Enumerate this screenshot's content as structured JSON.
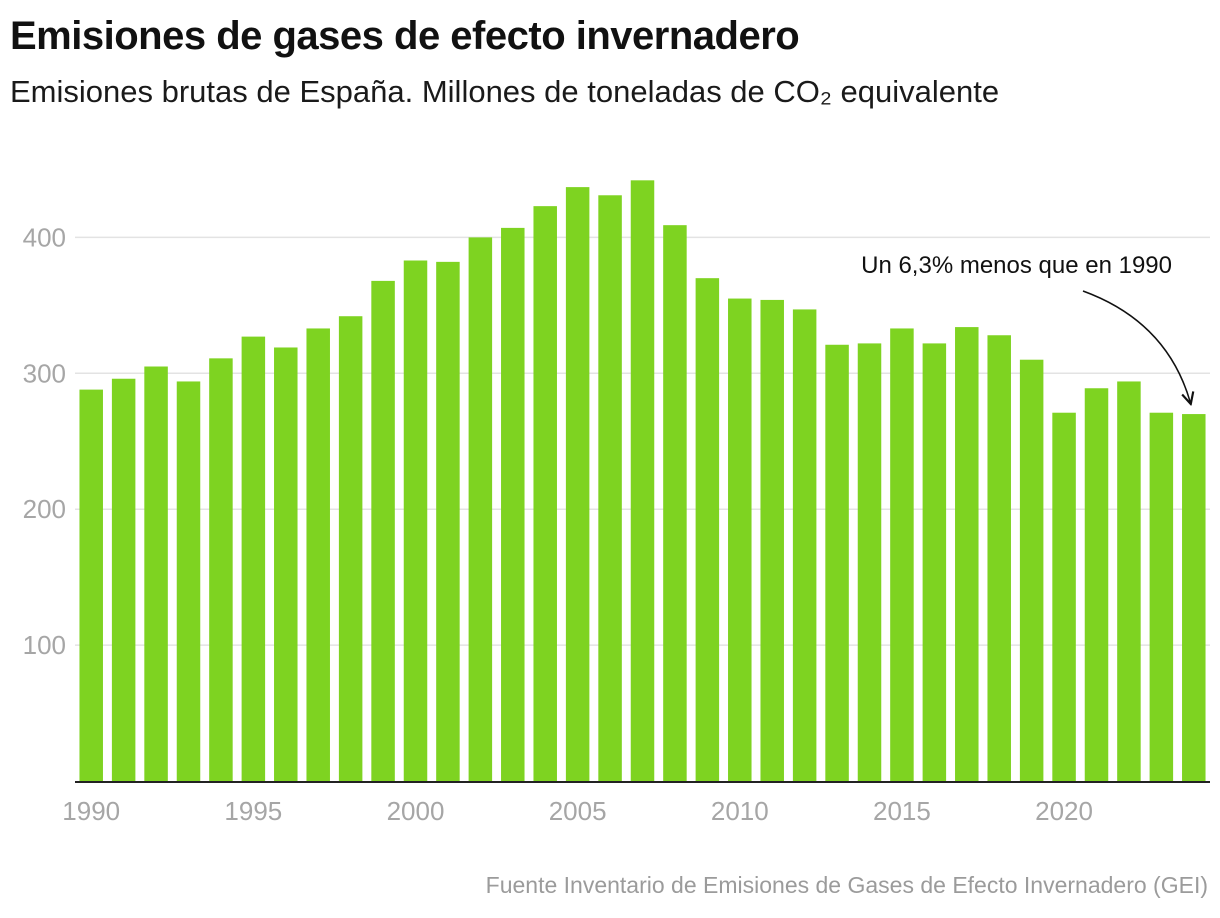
{
  "header": {
    "title": "Emisiones de gases de efecto invernadero",
    "subtitle": "Emisiones brutas de España. Millones de toneladas de CO₂ equivalente"
  },
  "footer": {
    "source": "Fuente Inventario de Emisiones de Gases de Efecto Invernadero (GEI)"
  },
  "chart_data": {
    "type": "bar",
    "title": "Emisiones de gases de efecto invernadero",
    "subtitle": "Emisiones brutas de España. Millones de toneladas de CO₂ equivalente",
    "categories": [
      1990,
      1991,
      1992,
      1993,
      1994,
      1995,
      1996,
      1997,
      1998,
      1999,
      2000,
      2001,
      2002,
      2003,
      2004,
      2005,
      2006,
      2007,
      2008,
      2009,
      2010,
      2011,
      2012,
      2013,
      2014,
      2015,
      2016,
      2017,
      2018,
      2019,
      2020,
      2021,
      2022,
      2023,
      2024
    ],
    "values": [
      288,
      296,
      305,
      294,
      311,
      327,
      319,
      333,
      342,
      368,
      383,
      382,
      400,
      407,
      423,
      437,
      431,
      442,
      409,
      370,
      355,
      354,
      347,
      321,
      322,
      333,
      322,
      334,
      328,
      310,
      271,
      289,
      294,
      271,
      270
    ],
    "ylim": [
      0,
      450
    ],
    "yticks": [
      100,
      200,
      300,
      400
    ],
    "xticks": [
      1990,
      1995,
      2000,
      2005,
      2010,
      2015,
      2020
    ],
    "xlabel": "",
    "ylabel": "",
    "grid": true,
    "bar_color": "#7ed321",
    "annotation": {
      "text": "Un 6,3% menos que en 1990",
      "target_year": 2024
    }
  }
}
